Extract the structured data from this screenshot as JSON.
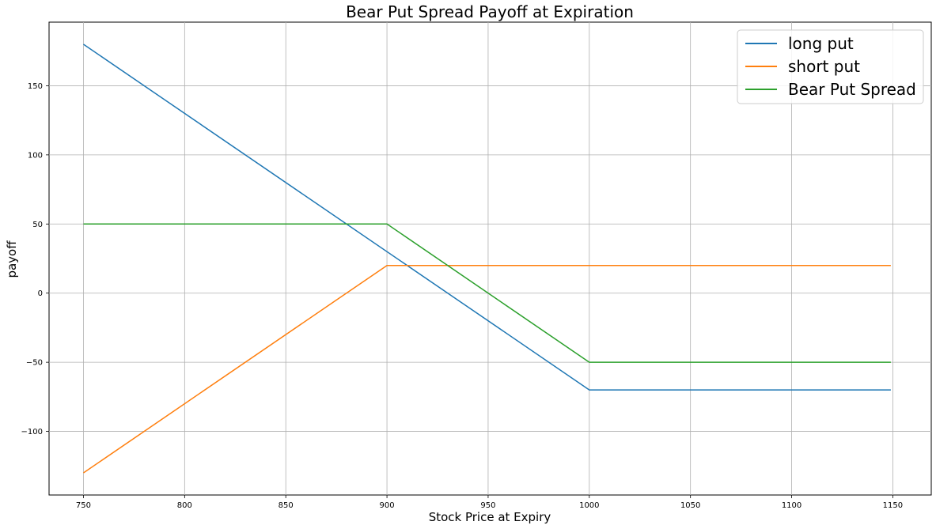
{
  "chart_data": {
    "type": "line",
    "title": "Bear Put Spread Payoff at Expiration",
    "xlabel": "Stock Price at Expiry",
    "ylabel": "payoff",
    "xlim": [
      733,
      1169
    ],
    "ylim": [
      -146,
      196
    ],
    "xticks": [
      750,
      800,
      850,
      900,
      950,
      1000,
      1050,
      1100,
      1150
    ],
    "yticks": [
      -100,
      -50,
      0,
      50,
      100,
      150
    ],
    "grid": true,
    "legend_position": "top-right",
    "series": [
      {
        "name": "long put",
        "color": "#1f77b4",
        "x": [
          750,
          1000,
          1149
        ],
        "y": [
          180,
          -70,
          -70
        ]
      },
      {
        "name": "short put",
        "color": "#ff7f0e",
        "x": [
          750,
          900,
          1149
        ],
        "y": [
          -130,
          20,
          20
        ]
      },
      {
        "name": "Bear Put Spread",
        "color": "#2ca02c",
        "x": [
          750,
          900,
          1000,
          1149
        ],
        "y": [
          50,
          50,
          -50,
          -50
        ]
      }
    ]
  }
}
